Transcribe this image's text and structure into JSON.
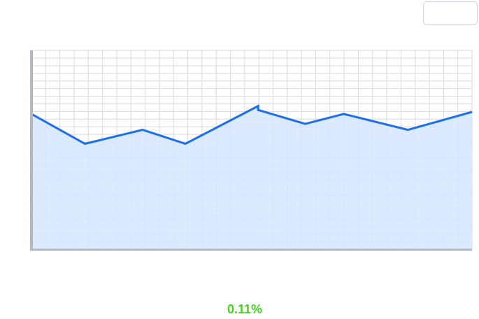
{
  "toolbar": {
    "button_label": ""
  },
  "chart_data": {
    "type": "area",
    "x": [
      0,
      1,
      2,
      3,
      4,
      5,
      6,
      7,
      8,
      9
    ],
    "values": [
      0.68,
      0.53,
      0.6,
      0.53,
      0.72,
      0.7,
      0.63,
      0.68,
      0.6,
      0.69
    ],
    "x_raw_positions_in_data_units": [
      0,
      1.25,
      2.6,
      3.6,
      5.3,
      5.3,
      6.4,
      7.3,
      8.8,
      10.3
    ],
    "ylim": [
      0,
      1
    ],
    "xlim": [
      0,
      10.3
    ],
    "grid": true,
    "title": "",
    "xlabel": "",
    "ylabel": ""
  },
  "summary": {
    "change": "0.11%"
  },
  "colors": {
    "line": "#1a6ff0",
    "fill": "#d6e6ff",
    "grid": "#d9d9d9",
    "axis": "#b3b9c2",
    "change_positive": "#45d11c"
  }
}
